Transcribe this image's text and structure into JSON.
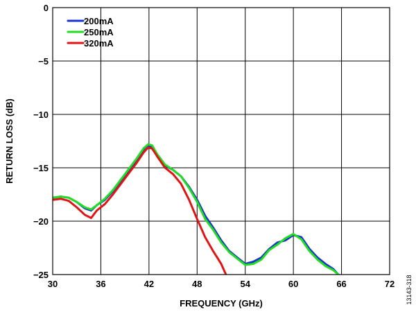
{
  "figure_id": "13143-318",
  "chart_data": {
    "type": "line",
    "title": "",
    "xlabel": "FREQUENCY (GHz)",
    "ylabel": "RETURN LOSS (dB)",
    "xlim": [
      30,
      72
    ],
    "ylim": [
      -25,
      0
    ],
    "xticks": [
      30,
      36,
      42,
      48,
      54,
      60,
      66,
      72
    ],
    "yticks": [
      0,
      -5,
      -10,
      -15,
      -20,
      -25
    ],
    "xtick_labels": [
      "30",
      "36",
      "42",
      "48",
      "54",
      "60",
      "66",
      "72"
    ],
    "ytick_labels": [
      "0",
      "−5",
      "−10",
      "−15",
      "−20",
      "−25"
    ],
    "grid": true,
    "legend_position": "top-left",
    "series": [
      {
        "name": "200mA",
        "color": "#1a33cc",
        "points": [
          [
            30,
            -17.8
          ],
          [
            31,
            -17.7
          ],
          [
            32,
            -17.8
          ],
          [
            33,
            -18.2
          ],
          [
            34,
            -18.8
          ],
          [
            34.8,
            -19.0
          ],
          [
            35.5,
            -18.5
          ],
          [
            36.5,
            -18.0
          ],
          [
            37.5,
            -17.2
          ],
          [
            38.5,
            -16.2
          ],
          [
            39.5,
            -15.2
          ],
          [
            40.5,
            -14.2
          ],
          [
            41.3,
            -13.3
          ],
          [
            41.8,
            -12.9
          ],
          [
            42.3,
            -13.0
          ],
          [
            43,
            -13.8
          ],
          [
            44,
            -14.8
          ],
          [
            45,
            -15.2
          ],
          [
            46,
            -15.8
          ],
          [
            47,
            -16.8
          ],
          [
            48,
            -18.0
          ],
          [
            49,
            -19.5
          ],
          [
            50,
            -20.6
          ],
          [
            51,
            -21.8
          ],
          [
            52,
            -22.8
          ],
          [
            53,
            -23.4
          ],
          [
            54,
            -24.0
          ],
          [
            55,
            -23.8
          ],
          [
            56,
            -23.4
          ],
          [
            57,
            -22.6
          ],
          [
            58,
            -22.0
          ],
          [
            59,
            -21.8
          ],
          [
            60,
            -21.3
          ],
          [
            61,
            -21.5
          ],
          [
            62,
            -22.6
          ],
          [
            63,
            -23.4
          ],
          [
            64,
            -24.0
          ],
          [
            65,
            -24.5
          ],
          [
            65.6,
            -25.0
          ]
        ]
      },
      {
        "name": "250mA",
        "color": "#22dd22",
        "points": [
          [
            30,
            -17.8
          ],
          [
            31,
            -17.7
          ],
          [
            32,
            -17.8
          ],
          [
            33,
            -18.2
          ],
          [
            34,
            -18.7
          ],
          [
            34.8,
            -18.9
          ],
          [
            35.5,
            -18.5
          ],
          [
            36.5,
            -17.9
          ],
          [
            37.5,
            -17.1
          ],
          [
            38.5,
            -16.1
          ],
          [
            39.5,
            -15.1
          ],
          [
            40.5,
            -14.1
          ],
          [
            41.3,
            -13.2
          ],
          [
            41.9,
            -12.8
          ],
          [
            42.4,
            -12.9
          ],
          [
            43,
            -13.7
          ],
          [
            44,
            -14.7
          ],
          [
            45,
            -15.2
          ],
          [
            46,
            -15.8
          ],
          [
            47,
            -16.9
          ],
          [
            48,
            -18.2
          ],
          [
            49,
            -19.8
          ],
          [
            50,
            -20.8
          ],
          [
            51,
            -22.0
          ],
          [
            52,
            -22.9
          ],
          [
            53,
            -23.5
          ],
          [
            54,
            -24.1
          ],
          [
            55,
            -24.0
          ],
          [
            56,
            -23.6
          ],
          [
            57,
            -22.7
          ],
          [
            58,
            -22.2
          ],
          [
            59,
            -21.6
          ],
          [
            60,
            -21.2
          ],
          [
            61,
            -21.7
          ],
          [
            62,
            -22.8
          ],
          [
            63,
            -23.6
          ],
          [
            64,
            -24.2
          ],
          [
            65,
            -24.6
          ],
          [
            65.6,
            -25.0
          ]
        ]
      },
      {
        "name": "320mA",
        "color": "#e01414",
        "points": [
          [
            30,
            -18.0
          ],
          [
            31,
            -17.9
          ],
          [
            32,
            -18.1
          ],
          [
            33,
            -18.7
          ],
          [
            34,
            -19.4
          ],
          [
            34.8,
            -19.7
          ],
          [
            35.5,
            -19.0
          ],
          [
            36.5,
            -18.4
          ],
          [
            37.5,
            -17.5
          ],
          [
            38.5,
            -16.5
          ],
          [
            39.5,
            -15.5
          ],
          [
            40.5,
            -14.5
          ],
          [
            41.3,
            -13.6
          ],
          [
            41.9,
            -13.1
          ],
          [
            42.4,
            -13.2
          ],
          [
            43,
            -13.9
          ],
          [
            44,
            -15.0
          ],
          [
            45,
            -15.6
          ],
          [
            46,
            -16.5
          ],
          [
            47,
            -18.0
          ],
          [
            48,
            -19.8
          ],
          [
            49,
            -21.5
          ],
          [
            50,
            -22.8
          ],
          [
            51,
            -24.0
          ],
          [
            51.6,
            -25.0
          ]
        ]
      }
    ]
  }
}
